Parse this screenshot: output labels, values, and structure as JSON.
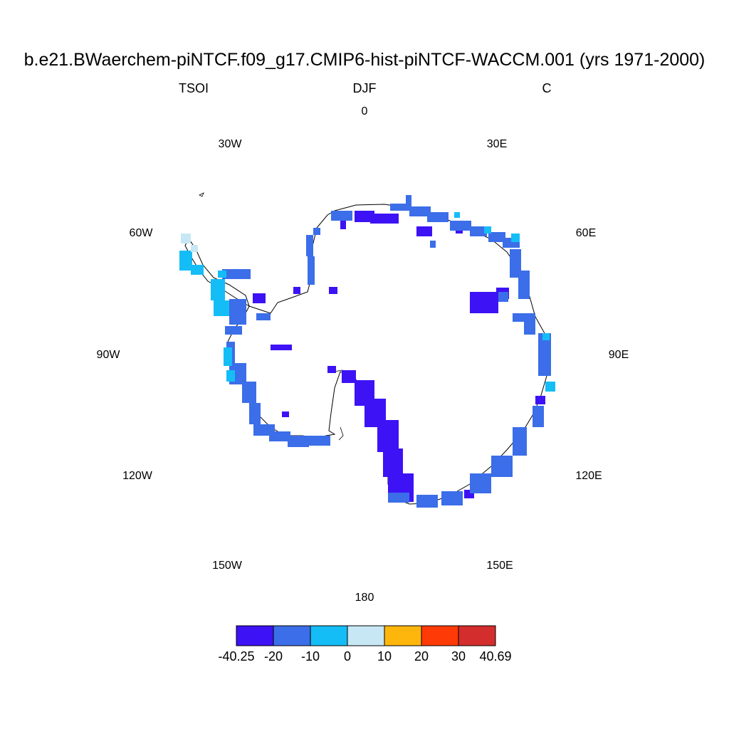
{
  "header": {
    "title": "b.e21.BWaerchem-piNTCF.f09_g17.CMIP6-hist-piNTCF-WACCM.001 (yrs 1971-2000)",
    "variable": "TSOI",
    "season": "DJF",
    "units": "C"
  },
  "longitude_labels": [
    "0",
    "30E",
    "60E",
    "90E",
    "120E",
    "150E",
    "180",
    "150W",
    "120W",
    "90W",
    "60W",
    "30W"
  ],
  "colorbar": {
    "labels": [
      "-40.25",
      "-20",
      "-10",
      "0",
      "10",
      "20",
      "30",
      "40.69"
    ],
    "colors": [
      "#3d12f5",
      "#3b6ee8",
      "#14bdf6",
      "#c8e7f4",
      "#ffb60c",
      "#fe3a06",
      "#d42d2d"
    ]
  },
  "map": {
    "projection": "polar-stereographic-south",
    "region": "Antarctica",
    "dominant_colors": [
      "#3d12f5",
      "#3b6ee8",
      "#14bdf6"
    ]
  }
}
